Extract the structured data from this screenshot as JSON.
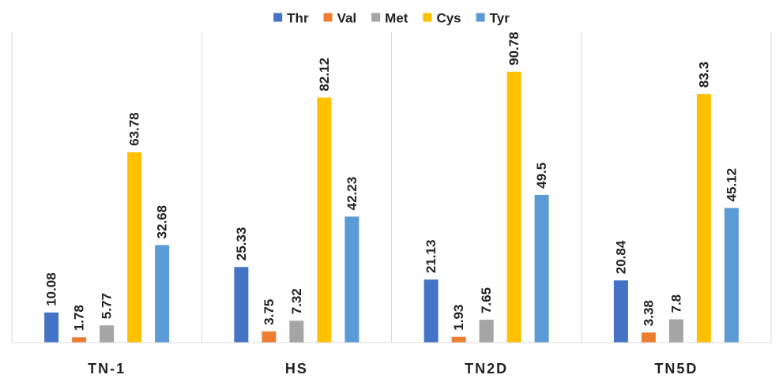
{
  "chart_data": {
    "type": "bar",
    "categories": [
      "TN-1",
      "HS",
      "TN2D",
      "TN5D"
    ],
    "series": [
      {
        "name": "Thr",
        "color": "#4472C4",
        "values": [
          10.08,
          25.33,
          21.13,
          20.84
        ]
      },
      {
        "name": "Val",
        "color": "#ED7D31",
        "values": [
          1.78,
          3.75,
          1.93,
          3.38
        ]
      },
      {
        "name": "Met",
        "color": "#A5A5A5",
        "values": [
          5.77,
          7.32,
          7.65,
          7.8
        ]
      },
      {
        "name": "Cys",
        "color": "#FFC000",
        "values": [
          63.78,
          82.12,
          90.78,
          83.3
        ]
      },
      {
        "name": "Tyr",
        "color": "#5B9BD5",
        "values": [
          32.68,
          42.23,
          49.5,
          45.12
        ]
      }
    ],
    "value_labels": [
      [
        "10.08",
        "25.33",
        "21.13",
        "20.84"
      ],
      [
        "1.78",
        "3.75",
        "1.93",
        "3.38"
      ],
      [
        "5.77",
        "7.32",
        "7.65",
        "7.8"
      ],
      [
        "63.78",
        "82.12",
        "90.78",
        "83.3"
      ],
      [
        "32.68",
        "42.23",
        "49.5",
        "45.12"
      ]
    ],
    "title": "",
    "xlabel": "",
    "ylabel": "",
    "ylim": [
      0,
      100
    ],
    "grid": false,
    "category_separators": true,
    "legend_position": "top-center",
    "data_labels": "above-bar-rotated"
  }
}
